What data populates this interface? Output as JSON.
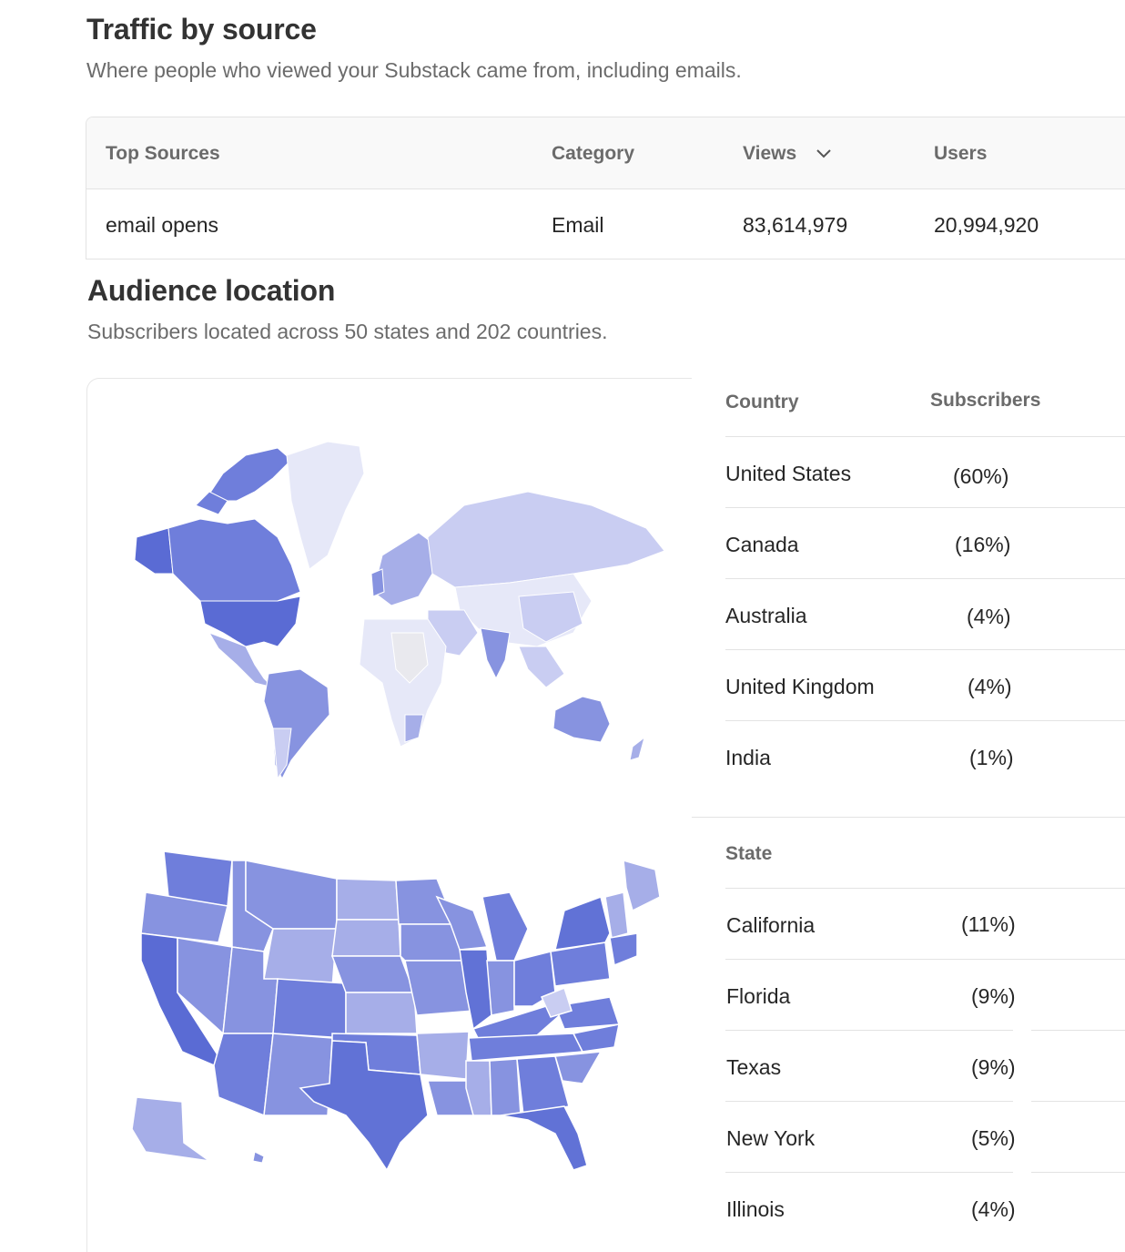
{
  "traffic": {
    "title": "Traffic by source",
    "subtitle": "Where people who viewed your Substack came from, including emails.",
    "columns": {
      "source": "Top Sources",
      "category": "Category",
      "views": "Views",
      "users": "Users"
    },
    "rows": [
      {
        "source": "email opens",
        "category": "Email",
        "views": "83,614,979",
        "users": "20,994,920"
      }
    ]
  },
  "audience": {
    "title": "Audience location",
    "subtitle": "Subscribers located across 50 states and 202 countries.",
    "country_table": {
      "col_country": "Country",
      "col_subscribers": "Subscribers",
      "rows": [
        {
          "name": "United States",
          "pct": "(60%)"
        },
        {
          "name": "Canada",
          "pct": "(16%)"
        },
        {
          "name": "Australia",
          "pct": "(4%)"
        },
        {
          "name": "United Kingdom",
          "pct": "(4%)"
        },
        {
          "name": "India",
          "pct": "(1%)"
        }
      ]
    },
    "state_table": {
      "col_state": "State",
      "rows": [
        {
          "name": "California",
          "pct": "(11%)"
        },
        {
          "name": "Florida",
          "pct": "(9%)"
        },
        {
          "name": "Texas",
          "pct": "(9%)"
        },
        {
          "name": "New York",
          "pct": "(5%)"
        },
        {
          "name": "Illinois",
          "pct": "(4%)"
        }
      ]
    }
  },
  "colors": {
    "map_darkest": "#5a6bd4",
    "map_dark": "#6f7edb",
    "map_mid": "#8793e0",
    "map_light": "#a6aee8",
    "map_lighter": "#c9cdf2",
    "map_lightest": "#e6e8f8",
    "map_none": "#e9e9ee"
  },
  "icons": {
    "sort": "chevron-down-icon"
  }
}
